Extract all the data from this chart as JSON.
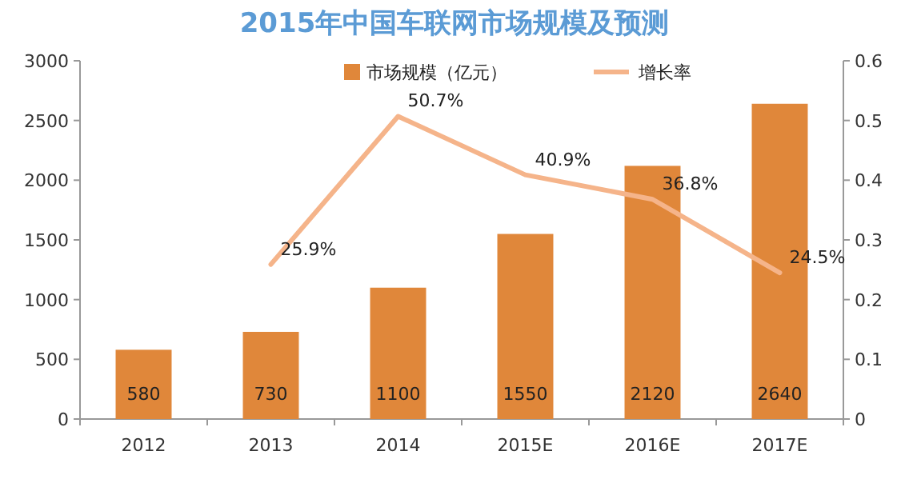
{
  "chart_data": {
    "type": "bar",
    "title": "2015年中国车联网市场规模及预测",
    "categories": [
      "2012",
      "2013",
      "2014",
      "2015E",
      "2016E",
      "2017E"
    ],
    "series": [
      {
        "name": "市场规模（亿元）",
        "color": "#e0873a",
        "values": [
          580,
          730,
          1100,
          1550,
          2120,
          2640
        ],
        "value_labels": [
          "580",
          "730",
          "1100",
          "1550",
          "2120",
          "2640"
        ]
      },
      {
        "name": "增长率",
        "type": "line",
        "axis": "y2",
        "color": "#f5b48a",
        "values": [
          null,
          0.259,
          0.507,
          0.409,
          0.368,
          0.245
        ],
        "value_labels": [
          null,
          "25.9%",
          "50.7%",
          "40.9%",
          "36.8%",
          "24.5%"
        ]
      }
    ],
    "ylim": [
      0,
      3000
    ],
    "yticks": [
      0,
      500,
      1000,
      1500,
      2000,
      2500,
      3000
    ],
    "y2lim": [
      0,
      0.6
    ],
    "y2ticks": [
      0,
      0.1,
      0.2,
      0.3,
      0.4,
      0.5,
      0.6
    ],
    "grid": false,
    "legend": "top",
    "marker": "none",
    "line_style": "solid"
  }
}
